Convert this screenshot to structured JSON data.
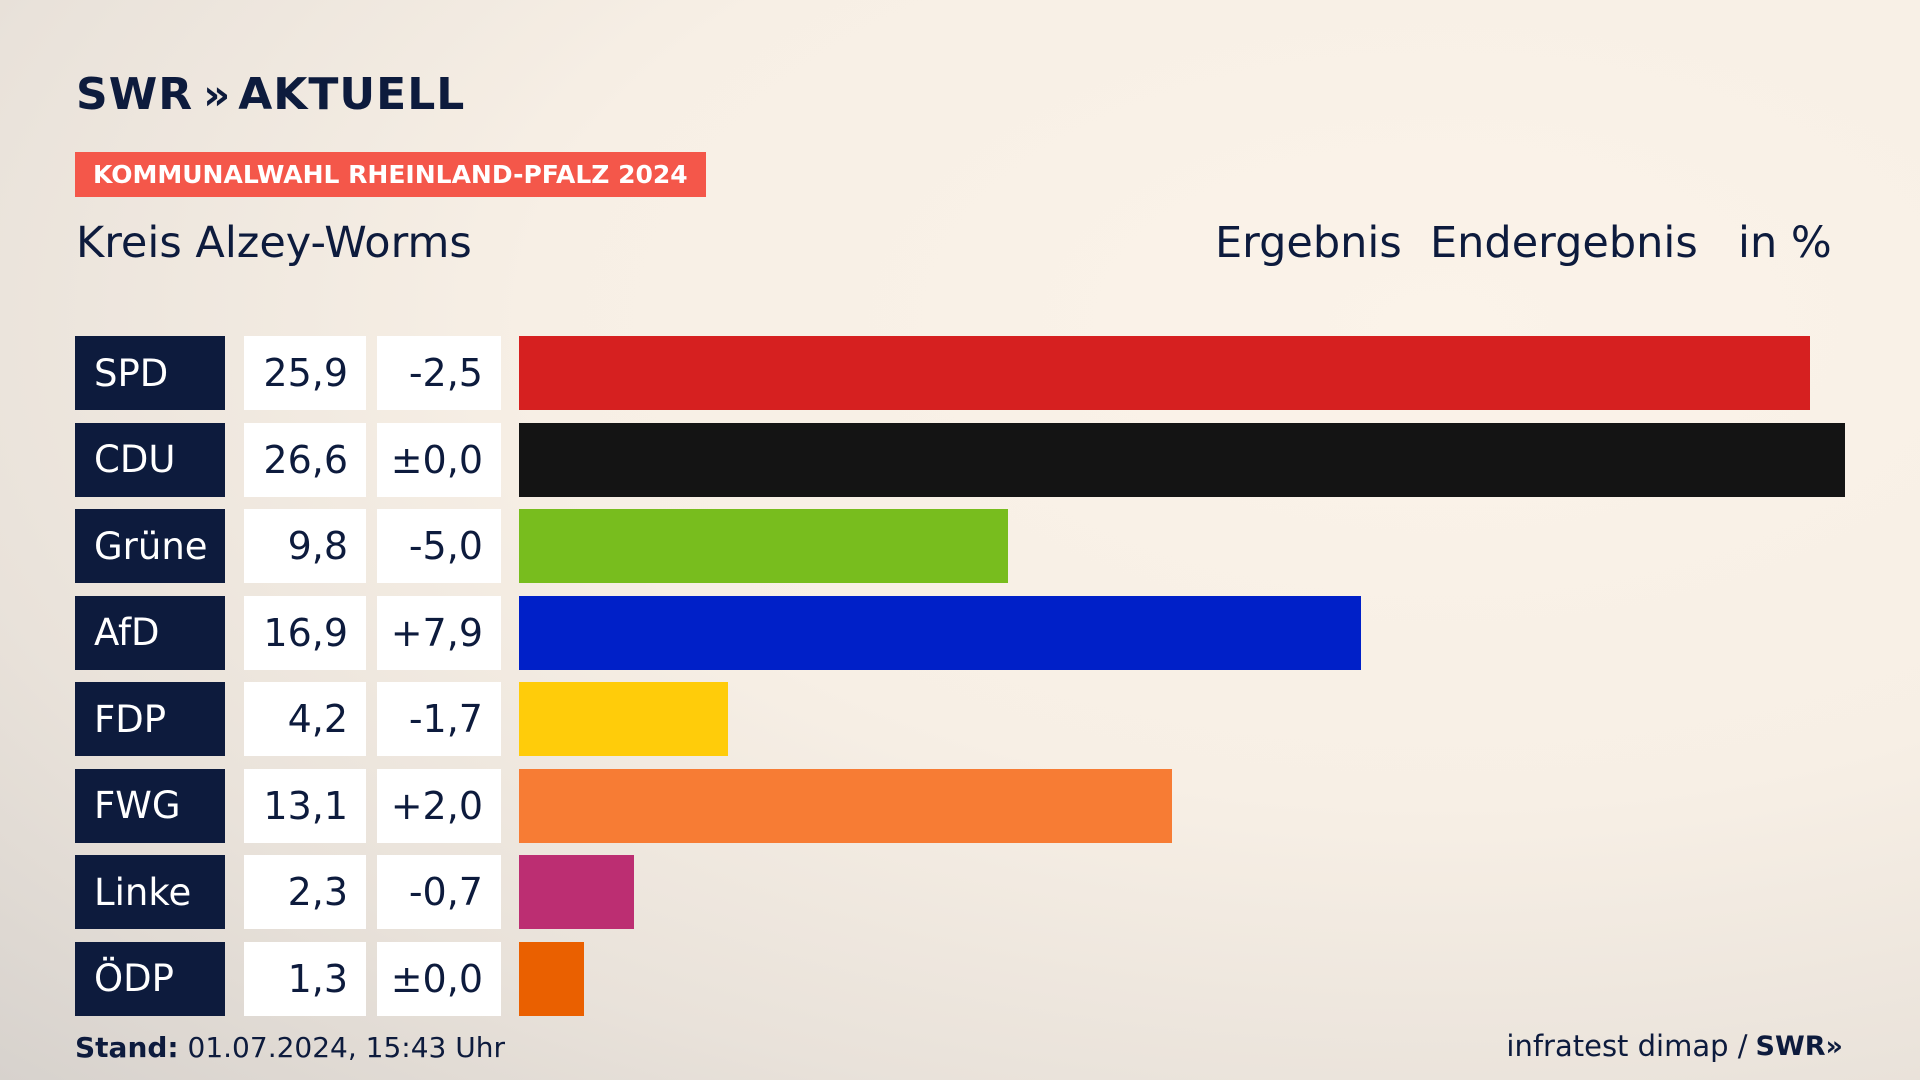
{
  "brand": {
    "name": "SWR",
    "chevrons": "»",
    "section": "AKTUELL"
  },
  "kicker": "KOMMUNALWAHL RHEINLAND-PFALZ 2024",
  "region": "Kreis Alzey-Worms",
  "headers": {
    "result": "Ergebnis",
    "status": "Endergebnis",
    "unit": "in %"
  },
  "footer": {
    "stand_label": "Stand:",
    "stand_value": "01.07.2024, 15:43 Uhr",
    "source": "infratest dimap /",
    "source_brand": "SWR»"
  },
  "chart_data": {
    "type": "bar",
    "orientation": "horizontal",
    "categories": [
      "SPD",
      "CDU",
      "Grüne",
      "AfD",
      "FDP",
      "FWG",
      "Linke",
      "ÖDP"
    ],
    "values": [
      25.9,
      26.6,
      9.8,
      16.9,
      4.2,
      13.1,
      2.3,
      1.3
    ],
    "value_labels": [
      "25,9",
      "26,6",
      "9,8",
      "16,9",
      "4,2",
      "13,1",
      "2,3",
      "1,3"
    ],
    "diff_labels": [
      "-2,5",
      "±0,0",
      "-5,0",
      "+7,9",
      "-1,7",
      "+2,0",
      "-0,7",
      "±0,0"
    ],
    "colors": [
      "#d62020",
      "#141414",
      "#78bd1e",
      "#0020c8",
      "#ffcc0a",
      "#f77c34",
      "#bc2e72",
      "#ea6000"
    ],
    "xlim": [
      0,
      26.6
    ],
    "grid": false,
    "legend": "none"
  }
}
